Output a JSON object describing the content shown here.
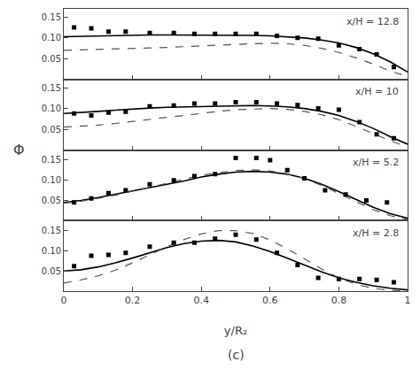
{
  "chart_data": [
    {
      "type": "line",
      "annotations": [
        "x/H = 12.8"
      ],
      "grid": false,
      "tick_labels": "y",
      "xlim": [
        0.0,
        1.0
      ],
      "xticks": [
        0.0,
        0.2,
        0.4,
        0.6,
        0.8,
        1.0
      ],
      "ylim": [
        0.0,
        0.17
      ],
      "yticks": [
        0.05,
        {
          "value": 0.1,
          "label": "0.10"
        },
        0.15
      ],
      "series": [
        {
          "type": "line",
          "color": "#000000",
          "line_style": "solid",
          "x": [
            0.0,
            0.05,
            0.1,
            0.15,
            0.2,
            0.25,
            0.3,
            0.35,
            0.4,
            0.45,
            0.5,
            0.55,
            0.6,
            0.65,
            0.7,
            0.75,
            0.8,
            0.85,
            0.9,
            0.95,
            1.0
          ],
          "values": [
            0.103,
            0.104,
            0.105,
            0.106,
            0.107,
            0.107,
            0.107,
            0.107,
            0.107,
            0.107,
            0.107,
            0.106,
            0.105,
            0.103,
            0.1,
            0.095,
            0.088,
            0.077,
            0.062,
            0.042,
            0.018
          ]
        },
        {
          "type": "line",
          "color": "#555555",
          "line_style": "dashed",
          "x": [
            0.0,
            0.05,
            0.1,
            0.15,
            0.2,
            0.25,
            0.3,
            0.35,
            0.4,
            0.45,
            0.5,
            0.55,
            0.6,
            0.65,
            0.7,
            0.75,
            0.8,
            0.85,
            0.9,
            0.95,
            1.0
          ],
          "values": [
            0.07,
            0.071,
            0.072,
            0.073,
            0.074,
            0.075,
            0.077,
            0.079,
            0.081,
            0.083,
            0.085,
            0.086,
            0.087,
            0.086,
            0.082,
            0.075,
            0.065,
            0.052,
            0.037,
            0.02,
            0.007
          ]
        },
        {
          "type": "scatter",
          "color": "#000000",
          "marker": "square",
          "x": [
            0.03,
            0.08,
            0.13,
            0.18,
            0.25,
            0.32,
            0.38,
            0.44,
            0.5,
            0.56,
            0.62,
            0.68,
            0.74,
            0.8,
            0.86,
            0.91,
            0.96
          ],
          "values": [
            0.125,
            0.123,
            0.115,
            0.115,
            0.112,
            0.112,
            0.11,
            0.11,
            0.11,
            0.11,
            0.105,
            0.1,
            0.098,
            0.082,
            0.073,
            0.06,
            0.03
          ]
        }
      ]
    },
    {
      "type": "line",
      "annotations": [
        "x/H = 10"
      ],
      "grid": false,
      "tick_labels": "y",
      "xlim": [
        0.0,
        1.0
      ],
      "xticks": [
        0.0,
        0.2,
        0.4,
        0.6,
        0.8,
        1.0
      ],
      "ylim": [
        0.0,
        0.17
      ],
      "yticks": [
        0.05,
        {
          "value": 0.1,
          "label": "0.10"
        },
        0.15
      ],
      "series": [
        {
          "type": "line",
          "color": "#000000",
          "line_style": "solid",
          "x": [
            0.0,
            0.05,
            0.1,
            0.15,
            0.2,
            0.25,
            0.3,
            0.35,
            0.4,
            0.45,
            0.5,
            0.55,
            0.6,
            0.65,
            0.7,
            0.75,
            0.8,
            0.85,
            0.9,
            0.95,
            1.0
          ],
          "values": [
            0.088,
            0.09,
            0.093,
            0.096,
            0.099,
            0.101,
            0.103,
            0.104,
            0.105,
            0.106,
            0.107,
            0.107,
            0.106,
            0.104,
            0.1,
            0.093,
            0.083,
            0.069,
            0.052,
            0.032,
            0.014
          ]
        },
        {
          "type": "line",
          "color": "#555555",
          "line_style": "dashed",
          "x": [
            0.0,
            0.05,
            0.1,
            0.15,
            0.2,
            0.25,
            0.3,
            0.35,
            0.4,
            0.45,
            0.5,
            0.55,
            0.6,
            0.65,
            0.7,
            0.75,
            0.8,
            0.85,
            0.9,
            0.95,
            1.0
          ],
          "values": [
            0.055,
            0.057,
            0.06,
            0.064,
            0.069,
            0.074,
            0.079,
            0.084,
            0.089,
            0.093,
            0.097,
            0.099,
            0.1,
            0.098,
            0.093,
            0.085,
            0.073,
            0.057,
            0.04,
            0.022,
            0.007
          ]
        },
        {
          "type": "scatter",
          "color": "#000000",
          "marker": "square",
          "x": [
            0.03,
            0.08,
            0.13,
            0.18,
            0.25,
            0.32,
            0.38,
            0.44,
            0.5,
            0.56,
            0.62,
            0.68,
            0.74,
            0.8,
            0.86,
            0.91,
            0.96
          ],
          "values": [
            0.088,
            0.083,
            0.09,
            0.092,
            0.105,
            0.107,
            0.112,
            0.112,
            0.115,
            0.115,
            0.112,
            0.108,
            0.1,
            0.097,
            0.067,
            0.038,
            0.028
          ]
        }
      ]
    },
    {
      "type": "line",
      "annotations": [
        "x/H = 5.2"
      ],
      "grid": false,
      "tick_labels": "y",
      "xlim": [
        0.0,
        1.0
      ],
      "xticks": [
        0.0,
        0.2,
        0.4,
        0.6,
        0.8,
        1.0
      ],
      "ylim": [
        0.0,
        0.175
      ],
      "yticks": [
        0.05,
        {
          "value": 0.1,
          "label": "0.10"
        },
        0.15
      ],
      "series": [
        {
          "type": "line",
          "color": "#000000",
          "line_style": "solid",
          "x": [
            0.0,
            0.05,
            0.1,
            0.15,
            0.2,
            0.25,
            0.3,
            0.35,
            0.4,
            0.45,
            0.5,
            0.55,
            0.6,
            0.65,
            0.7,
            0.75,
            0.8,
            0.85,
            0.9,
            0.95,
            1.0
          ],
          "values": [
            0.045,
            0.05,
            0.057,
            0.065,
            0.073,
            0.081,
            0.09,
            0.098,
            0.108,
            0.115,
            0.12,
            0.122,
            0.12,
            0.115,
            0.105,
            0.09,
            0.072,
            0.052,
            0.033,
            0.017,
            0.006
          ]
        },
        {
          "type": "line",
          "color": "#555555",
          "line_style": "dashed",
          "x": [
            0.0,
            0.05,
            0.1,
            0.15,
            0.2,
            0.25,
            0.3,
            0.35,
            0.4,
            0.45,
            0.5,
            0.55,
            0.6,
            0.65,
            0.7,
            0.75,
            0.8,
            0.85,
            0.9,
            0.95,
            1.0
          ],
          "values": [
            0.043,
            0.048,
            0.055,
            0.063,
            0.073,
            0.083,
            0.093,
            0.103,
            0.112,
            0.119,
            0.124,
            0.126,
            0.123,
            0.116,
            0.104,
            0.087,
            0.067,
            0.046,
            0.027,
            0.012,
            0.003
          ]
        },
        {
          "type": "scatter",
          "color": "#000000",
          "marker": "square",
          "x": [
            0.03,
            0.08,
            0.13,
            0.18,
            0.25,
            0.32,
            0.38,
            0.44,
            0.5,
            0.56,
            0.6,
            0.65,
            0.7,
            0.76,
            0.82,
            0.88,
            0.94
          ],
          "values": [
            0.045,
            0.055,
            0.068,
            0.075,
            0.09,
            0.1,
            0.11,
            0.115,
            0.155,
            0.155,
            0.15,
            0.125,
            0.105,
            0.075,
            0.065,
            0.05,
            0.045
          ]
        }
      ]
    },
    {
      "type": "line",
      "annotations": [
        "x/H = 2.8",
        "(c)"
      ],
      "grid": false,
      "xlabel": "y/R₂",
      "ylabel": "Φ",
      "xlim": [
        0.0,
        1.0
      ],
      "xticks": [
        0.0,
        0.2,
        0.4,
        0.6,
        0.8,
        1.0
      ],
      "ylim": [
        0.0,
        0.175
      ],
      "yticks": [
        0.05,
        {
          "value": 0.1,
          "label": "0.10"
        },
        0.15
      ],
      "series": [
        {
          "type": "line",
          "color": "#000000",
          "line_style": "solid",
          "x": [
            0.0,
            0.05,
            0.1,
            0.15,
            0.2,
            0.25,
            0.3,
            0.35,
            0.4,
            0.45,
            0.5,
            0.55,
            0.6,
            0.65,
            0.7,
            0.75,
            0.8,
            0.85,
            0.9,
            0.95,
            1.0
          ],
          "values": [
            0.05,
            0.053,
            0.06,
            0.07,
            0.082,
            0.095,
            0.108,
            0.118,
            0.124,
            0.126,
            0.122,
            0.112,
            0.098,
            0.082,
            0.065,
            0.048,
            0.033,
            0.022,
            0.013,
            0.007,
            0.003
          ]
        },
        {
          "type": "line",
          "color": "#555555",
          "line_style": "dashed",
          "x": [
            0.0,
            0.05,
            0.1,
            0.15,
            0.2,
            0.25,
            0.3,
            0.35,
            0.4,
            0.45,
            0.5,
            0.55,
            0.6,
            0.65,
            0.7,
            0.75,
            0.8,
            0.85,
            0.9,
            0.95,
            1.0
          ],
          "values": [
            0.02,
            0.028,
            0.038,
            0.052,
            0.07,
            0.09,
            0.11,
            0.128,
            0.142,
            0.15,
            0.15,
            0.143,
            0.127,
            0.105,
            0.08,
            0.055,
            0.033,
            0.017,
            0.007,
            0.002,
            0.001
          ]
        },
        {
          "type": "scatter",
          "color": "#000000",
          "marker": "square",
          "x": [
            0.03,
            0.08,
            0.13,
            0.18,
            0.25,
            0.32,
            0.38,
            0.44,
            0.5,
            0.56,
            0.62,
            0.68,
            0.74,
            0.8,
            0.86,
            0.91,
            0.96
          ],
          "values": [
            0.062,
            0.088,
            0.09,
            0.095,
            0.11,
            0.12,
            0.12,
            0.13,
            0.14,
            0.128,
            0.095,
            0.065,
            0.033,
            0.03,
            0.03,
            0.028,
            0.022
          ]
        }
      ]
    }
  ]
}
